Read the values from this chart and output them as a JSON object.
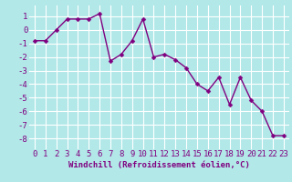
{
  "x": [
    0,
    1,
    2,
    3,
    4,
    5,
    6,
    7,
    8,
    9,
    10,
    11,
    12,
    13,
    14,
    15,
    16,
    17,
    18,
    19,
    20,
    21,
    22,
    23
  ],
  "y": [
    -0.8,
    -0.8,
    0.0,
    0.8,
    0.8,
    0.8,
    1.2,
    -2.3,
    -1.8,
    -0.8,
    0.8,
    -2.0,
    -1.8,
    -2.2,
    -2.8,
    -4.0,
    -4.5,
    -3.5,
    -5.5,
    -3.5,
    -5.2,
    -6.0,
    -7.8,
    -7.8
  ],
  "line_color": "#800080",
  "marker_color": "#800080",
  "bg_color": "#b2e8e8",
  "grid_color": "#ffffff",
  "xlabel": "Windchill (Refroidissement éolien,°C)",
  "xlim": [
    -0.5,
    23.5
  ],
  "ylim": [
    -8.8,
    1.8
  ],
  "yticks": [
    -8,
    -7,
    -6,
    -5,
    -4,
    -3,
    -2,
    -1,
    0,
    1
  ],
  "xticks": [
    0,
    1,
    2,
    3,
    4,
    5,
    6,
    7,
    8,
    9,
    10,
    11,
    12,
    13,
    14,
    15,
    16,
    17,
    18,
    19,
    20,
    21,
    22,
    23
  ],
  "xlabel_fontsize": 6.5,
  "tick_fontsize": 6.5,
  "line_width": 1.0,
  "marker_size": 2.5
}
